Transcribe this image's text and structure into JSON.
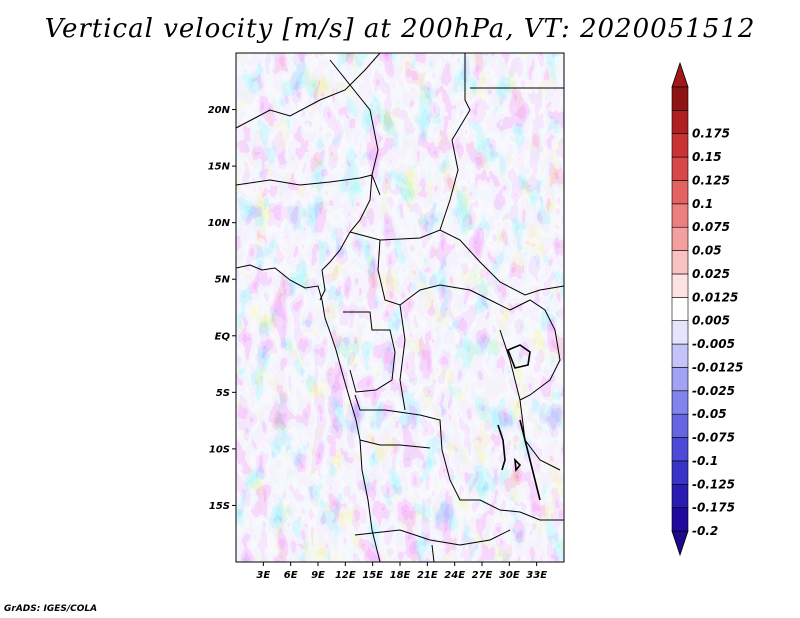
{
  "title": "Vertical velocity [m/s] at 200hPa, VT: 2020051512",
  "credit": "GrADS: IGES/COLA",
  "map": {
    "lon_range": [
      0,
      36
    ],
    "lat_range": [
      -20,
      25
    ],
    "lat_ticks": [
      {
        "value": 20,
        "label": "20N"
      },
      {
        "value": 15,
        "label": "15N"
      },
      {
        "value": 10,
        "label": "10N"
      },
      {
        "value": 5,
        "label": "5N"
      },
      {
        "value": 0,
        "label": "EQ"
      },
      {
        "value": -5,
        "label": "5S"
      },
      {
        "value": -10,
        "label": "10S"
      },
      {
        "value": -15,
        "label": "15S"
      }
    ],
    "lon_ticks": [
      {
        "value": 3,
        "label": "3E"
      },
      {
        "value": 6,
        "label": "6E"
      },
      {
        "value": 9,
        "label": "9E"
      },
      {
        "value": 12,
        "label": "12E"
      },
      {
        "value": 15,
        "label": "15E"
      },
      {
        "value": 18,
        "label": "18E"
      },
      {
        "value": 21,
        "label": "21E"
      },
      {
        "value": 24,
        "label": "24E"
      },
      {
        "value": 27,
        "label": "27E"
      },
      {
        "value": 30,
        "label": "30E"
      },
      {
        "value": 33,
        "label": "33E"
      }
    ]
  },
  "colorbar": [
    {
      "label": "-0.2",
      "color": "#1f0a9e"
    },
    {
      "label": "-0.175",
      "color": "#2a1cb3"
    },
    {
      "label": "-0.125",
      "color": "#3a33c8"
    },
    {
      "label": "-0.1",
      "color": "#4e4ad7"
    },
    {
      "label": "-0.075",
      "color": "#6666e3"
    },
    {
      "label": "-0.05",
      "color": "#8383ec"
    },
    {
      "label": "-0.025",
      "color": "#a2a2f3"
    },
    {
      "label": "-0.0125",
      "color": "#c4c4f8"
    },
    {
      "label": "-0.005",
      "color": "#e4e4fc"
    },
    {
      "label": "0.005",
      "color": "#ffffff"
    },
    {
      "label": "0.0125",
      "color": "#fde2e2"
    },
    {
      "label": "0.025",
      "color": "#f9c2c2"
    },
    {
      "label": "0.05",
      "color": "#f4a0a0"
    },
    {
      "label": "0.075",
      "color": "#ec8080"
    },
    {
      "label": "0.1",
      "color": "#e36262"
    },
    {
      "label": "0.125",
      "color": "#d84848"
    },
    {
      "label": "0.15",
      "color": "#c93333"
    },
    {
      "label": "0.175",
      "color": "#b02020"
    },
    {
      "label": "",
      "color": "#8e1414"
    }
  ],
  "cb_under_color": "#1a0a8c",
  "cb_over_color": "#a01818"
}
